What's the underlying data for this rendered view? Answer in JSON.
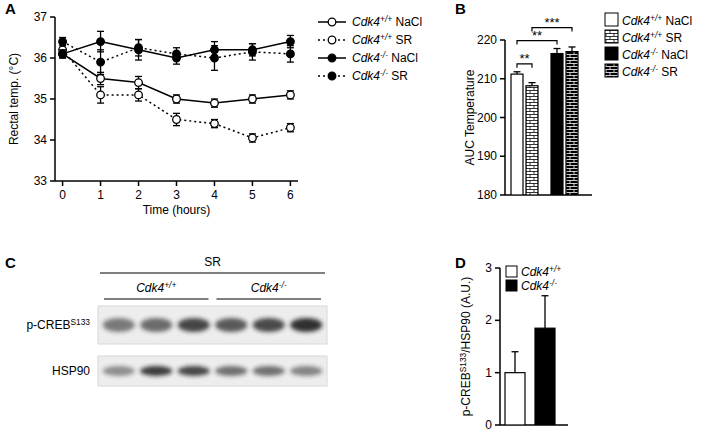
{
  "chart_data": [
    {
      "panel": "A",
      "type": "line",
      "x_label": "Time (hours)",
      "y_label": "Rectal temp. (°C)",
      "x": [
        0,
        1,
        2,
        3,
        4,
        5,
        6
      ],
      "xlim": [
        -0.2,
        6.2
      ],
      "xticks": [
        0,
        1,
        2,
        3,
        4,
        5,
        6
      ],
      "ylim": [
        33,
        37
      ],
      "yticks": [
        33,
        34,
        35,
        36,
        37
      ],
      "legend": "right",
      "series": [
        {
          "name": "Cdk4+/+ NaCl",
          "color": "#000000",
          "marker": "open-circle",
          "line_style": "solid",
          "values": [
            36.1,
            35.5,
            35.4,
            35.0,
            34.9,
            35.0,
            35.1
          ],
          "errors": [
            0.1,
            0.15,
            0.15,
            0.1,
            0.1,
            0.1,
            0.1
          ]
        },
        {
          "name": "Cdk4+/+ SR",
          "color": "#000000",
          "marker": "open-circle",
          "line_style": "dotted",
          "values": [
            36.2,
            35.1,
            35.1,
            34.5,
            34.4,
            34.05,
            34.3
          ],
          "errors": [
            0.15,
            0.2,
            0.15,
            0.15,
            0.1,
            0.1,
            0.1
          ]
        },
        {
          "name": "Cdk4-/- NaCl",
          "color": "#000000",
          "marker": "circle",
          "line_style": "solid",
          "values": [
            36.1,
            36.4,
            36.2,
            36.0,
            36.2,
            36.2,
            36.4
          ],
          "errors": [
            0.1,
            0.25,
            0.25,
            0.15,
            0.2,
            0.15,
            0.15
          ]
        },
        {
          "name": "Cdk4-/- SR",
          "color": "#000000",
          "marker": "circle",
          "line_style": "dotted",
          "values": [
            36.4,
            35.9,
            36.25,
            36.1,
            36.0,
            36.15,
            36.1
          ],
          "errors": [
            0.1,
            0.3,
            0.2,
            0.15,
            0.3,
            0.2,
            0.2
          ]
        }
      ]
    },
    {
      "panel": "B",
      "type": "bar",
      "y_label": "AUC Temperature",
      "categories": [
        "Cdk4+/+ NaCl",
        "Cdk4+/+ SR",
        "Cdk4-/- NaCl",
        "Cdk4-/- SR"
      ],
      "values": [
        211.2,
        208.2,
        216.5,
        217.0
      ],
      "errors": [
        0.6,
        0.8,
        1.3,
        1.2
      ],
      "colors": [
        "#ffffff",
        "#ffffff",
        "#000000",
        "#000000"
      ],
      "ylim": [
        180,
        220
      ],
      "yticks": [
        180,
        190,
        200,
        210,
        220
      ],
      "tick_labels": "y",
      "legend": "right",
      "annotations": [
        {
          "from": 0,
          "to": 1,
          "text": "**"
        },
        {
          "from": 0,
          "to": 2,
          "text": "**"
        },
        {
          "from": 1,
          "to": 3,
          "text": "***"
        }
      ]
    },
    {
      "panel": "D",
      "type": "bar",
      "y_label": "p-CREBS133/HSP90 (A.U.)",
      "categories": [
        "Cdk4+/+",
        "Cdk4-/-"
      ],
      "values": [
        1.0,
        1.85
      ],
      "errors": [
        0.4,
        0.62
      ],
      "colors": [
        "#ffffff",
        "#000000"
      ],
      "ylim": [
        0,
        3
      ],
      "yticks": [
        0,
        1,
        2,
        3
      ],
      "tick_labels": "y",
      "legend": "top-left"
    }
  ],
  "blot": {
    "panel": "C",
    "title": "SR",
    "groups": [
      "Cdk4+/+",
      "Cdk4-/-"
    ],
    "rows": [
      "p-CREBS133",
      "HSP90"
    ]
  }
}
